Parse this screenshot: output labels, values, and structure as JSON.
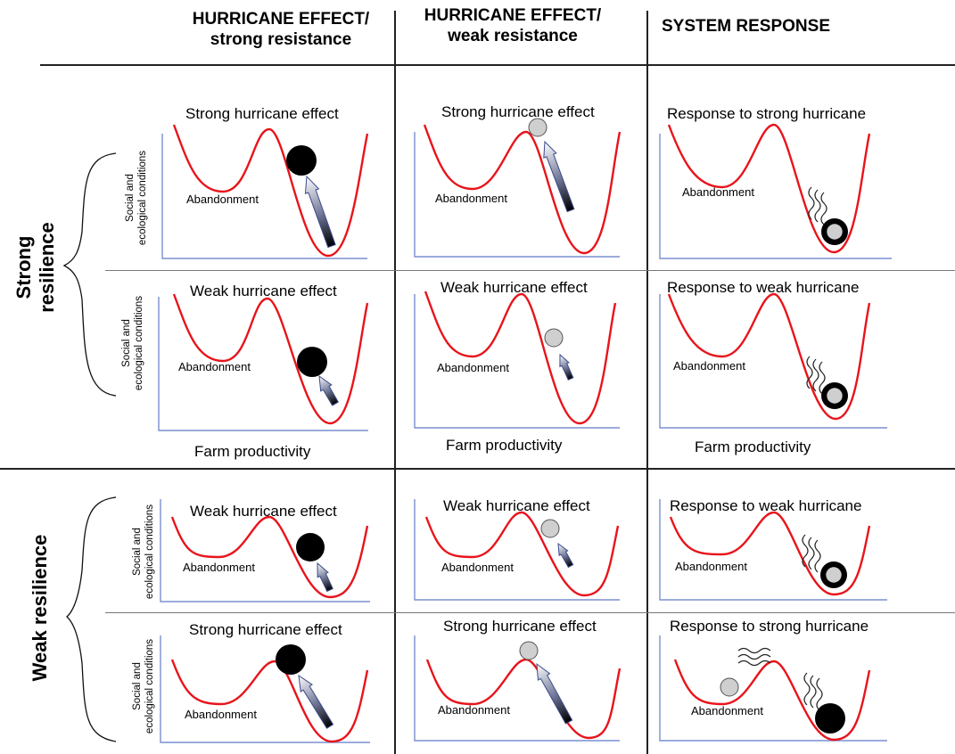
{
  "columns": {
    "col1": {
      "line1": "HURRICANE EFFECT/",
      "line2": "strong resistance"
    },
    "col2": {
      "line1": "HURRICANE EFFECT/",
      "line2": "weak resistance"
    },
    "col3": {
      "line1": "SYSTEM RESPONSE"
    }
  },
  "rows": {
    "strong": {
      "line1": "Strong",
      "line2": "resilience"
    },
    "weak": {
      "label": "Weak resilience"
    }
  },
  "y_axis": {
    "line1": "Social and",
    "line2": "ecological conditions"
  },
  "x_axis": {
    "label": "Farm productivity"
  },
  "valley_label": "Abandonment",
  "titles": {
    "strong_effect": "Strong hurricane effect",
    "weak_effect": "Weak hurricane effect",
    "resp_strong": "Response to strong hurricane",
    "resp_weak": "Response to weak hurricane"
  },
  "colors": {
    "curve": "#e8141b",
    "axis": "#7a8fd0",
    "ball_dark": "#000000",
    "ball_light": "#cfcfcf"
  }
}
